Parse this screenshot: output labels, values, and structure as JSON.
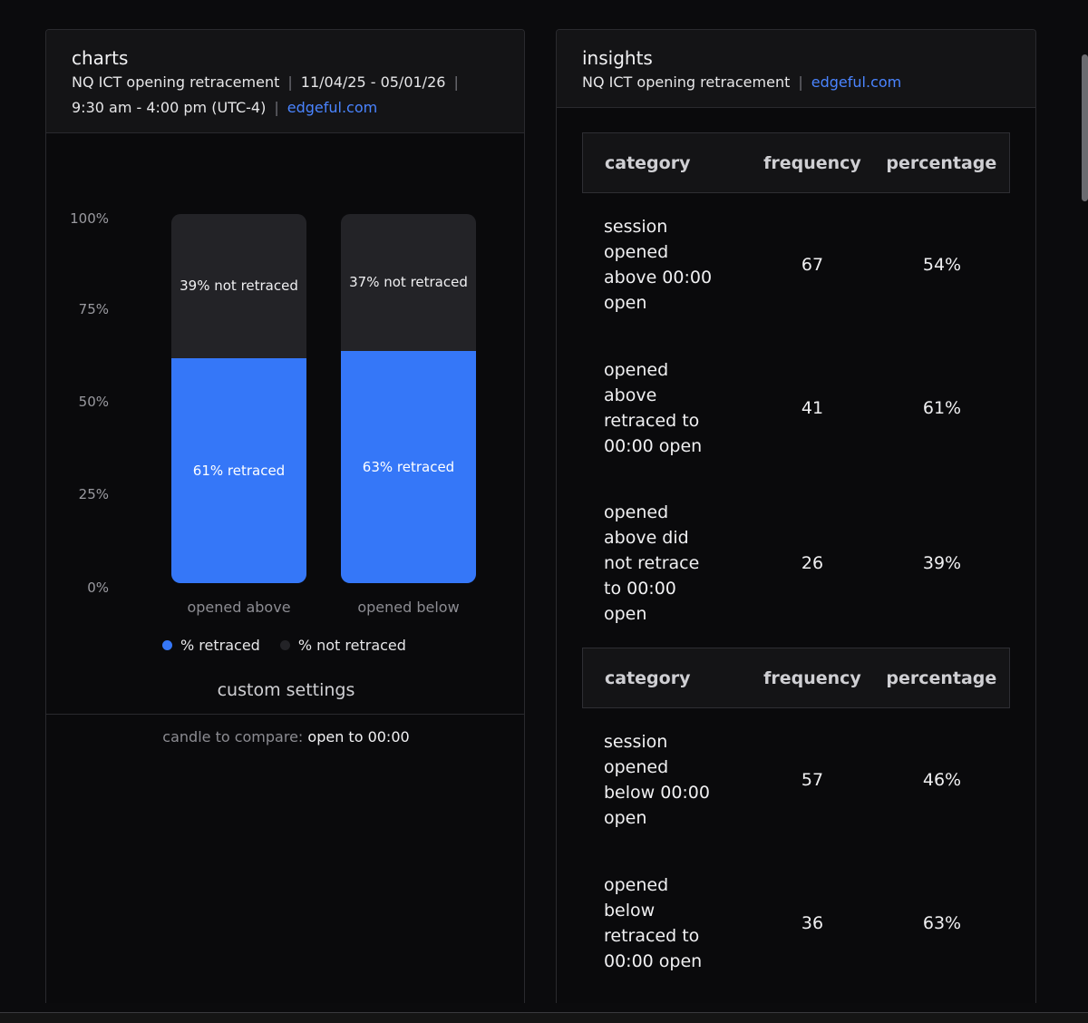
{
  "charts": {
    "title": "charts",
    "meta_name": "NQ ICT opening retracement",
    "meta_dates": "11/04/25 - 05/01/26",
    "meta_time": "9:30 am - 4:00 pm (UTC-4)",
    "meta_link": "edgeful.com",
    "separator": "|",
    "custom_settings_title": "custom settings",
    "custom_key": "candle to compare:",
    "custom_value": "open to 00:00"
  },
  "chart_data": {
    "type": "bar",
    "stacked": true,
    "categories": [
      "opened above",
      "opened below"
    ],
    "series": [
      {
        "name": "% retraced",
        "values": [
          61,
          63
        ],
        "labels": [
          "61% retraced",
          "63% retraced"
        ],
        "color": "#3577f8"
      },
      {
        "name": "% not retraced",
        "values": [
          39,
          37
        ],
        "labels": [
          "39% not retraced",
          "37% not retraced"
        ],
        "color": "#232327"
      }
    ],
    "yticks": [
      "100%",
      "75%",
      "50%",
      "25%",
      "0%"
    ],
    "ylim": [
      0,
      100
    ],
    "legend": "bottom"
  },
  "insights": {
    "title": "insights",
    "meta_name": "NQ ICT opening retracement",
    "meta_link": "edgeful.com",
    "separator": "|",
    "headers": [
      "category",
      "frequency",
      "percentage"
    ],
    "table1": [
      {
        "category": "session opened above 00:00 open",
        "frequency": "67",
        "percentage": "54%"
      },
      {
        "category": "opened above retraced to 00:00 open",
        "frequency": "41",
        "percentage": "61%"
      },
      {
        "category": "opened above did not retrace to 00:00 open",
        "frequency": "26",
        "percentage": "39%"
      }
    ],
    "table2": [
      {
        "category": "session opened below 00:00 open",
        "frequency": "57",
        "percentage": "46%"
      },
      {
        "category": "opened below retraced to 00:00 open",
        "frequency": "36",
        "percentage": "63%"
      }
    ]
  }
}
